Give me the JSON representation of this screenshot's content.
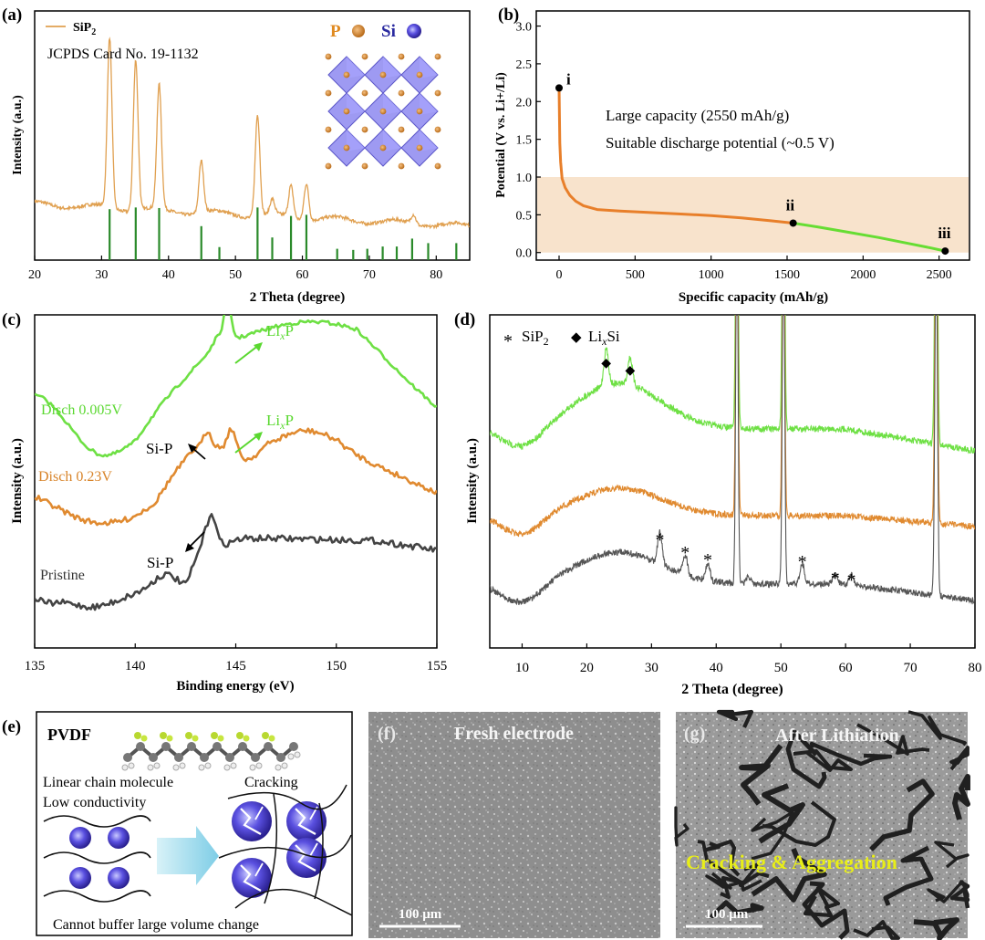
{
  "panels": {
    "a": {
      "tag": "(a)",
      "legend": "SiP",
      "legend_sub": "2",
      "card": "JCPDS Card No. 19-1132",
      "p_label": "P",
      "si_label": "Si"
    },
    "b": {
      "tag": "(b)",
      "text1": "Large capacity (2550 mAh/g)",
      "text2": "Suitable discharge potential (~0.5 V)",
      "pt_i": "i",
      "pt_ii": "ii",
      "pt_iii": "iii"
    },
    "c": {
      "tag": "(c)",
      "s_top": "Disch 0.005V",
      "s_mid": "Disch 0.23V",
      "s_bot": "Pristine",
      "lixp": "Li",
      "lixp_x": "x",
      "lixp_p": "P",
      "sip": "Si-P"
    },
    "d": {
      "tag": "(d)",
      "leg1": "SiP",
      "leg1_sub": "2",
      "leg2": "Li",
      "leg2_x": "x",
      "leg2_si": "Si"
    },
    "e": {
      "tag": "(e)",
      "title": "PVDF",
      "line1": "Linear chain molecule",
      "line2": "Low conductivity",
      "cracking": "Cracking",
      "bottom": "Cannot buffer large volume change"
    },
    "f": {
      "tag": "(f)",
      "title": "Fresh electrode",
      "scale": "100 μm"
    },
    "g": {
      "tag": "(g)",
      "title": "After Lithiation",
      "caption": "Cracking & Aggregation",
      "scale": "100 μm"
    }
  },
  "chart_data": [
    {
      "panel": "a",
      "type": "line",
      "xlabel": "2 Theta (degree)",
      "ylabel": "Intensity (a.u.)",
      "xlim": [
        20,
        85
      ],
      "xticks": [
        20,
        30,
        40,
        50,
        60,
        70,
        80
      ],
      "series": [
        {
          "name": "SiP2",
          "color": "#e0a050",
          "peaks": [
            31.2,
            35.1,
            38.6,
            44.9,
            53.3,
            55.5,
            58.3,
            60.6,
            76.6
          ],
          "peak_heights": [
            0.92,
            0.82,
            0.67,
            0.28,
            0.55,
            0.08,
            0.17,
            0.2,
            0.05
          ]
        }
      ],
      "reference_lines": {
        "color": "#2a8a2a",
        "x": [
          31.2,
          35.1,
          38.6,
          44.9,
          47.6,
          53.3,
          55.5,
          58.3,
          60.6,
          65.2,
          67.6,
          69.7,
          72.0,
          74.1,
          76.4,
          78.8,
          83.0
        ],
        "heights": [
          0.9,
          0.93,
          0.92,
          0.6,
          0.23,
          0.93,
          0.4,
          0.78,
          0.8,
          0.2,
          0.18,
          0.2,
          0.24,
          0.24,
          0.38,
          0.3,
          0.3
        ]
      }
    },
    {
      "panel": "b",
      "type": "line",
      "xlabel": "Specific capacity (mAh/g)",
      "ylabel": "Potential (V vs. Li+/Li)",
      "xlim": [
        -150,
        2700
      ],
      "ylim": [
        -0.1,
        3.2
      ],
      "xticks": [
        0,
        500,
        1000,
        1500,
        2000,
        2500
      ],
      "yticks": [
        0.0,
        0.5,
        1.0,
        1.5,
        2.0,
        2.5,
        3.0
      ],
      "band": [
        0,
        1.0
      ],
      "series": [
        {
          "name": "",
          "color": "#e87f2a",
          "x": [
            0,
            5,
            10,
            20,
            40,
            70,
            110,
            160,
            250,
            400,
            600,
            800,
            1000,
            1200,
            1400,
            1540
          ],
          "y": [
            2.18,
            1.45,
            1.2,
            0.98,
            0.86,
            0.76,
            0.68,
            0.62,
            0.57,
            0.55,
            0.53,
            0.51,
            0.49,
            0.46,
            0.42,
            0.39
          ]
        },
        {
          "name": "",
          "color": "#66dd33",
          "x": [
            1540,
            1700,
            1900,
            2100,
            2300,
            2450,
            2540
          ],
          "y": [
            0.39,
            0.34,
            0.27,
            0.2,
            0.12,
            0.06,
            0.02
          ]
        }
      ],
      "markers": [
        {
          "label": "i",
          "x": 0,
          "y": 2.18
        },
        {
          "label": "ii",
          "x": 1540,
          "y": 0.39
        },
        {
          "label": "iii",
          "x": 2540,
          "y": 0.02
        }
      ]
    },
    {
      "panel": "c",
      "type": "line",
      "xlabel": "Binding energy (eV)",
      "ylabel": "Intensity (a.u.)",
      "xlim": [
        135,
        155
      ],
      "xticks": [
        135,
        140,
        145,
        150,
        155
      ],
      "series": [
        {
          "name": "Disch 0.005V",
          "color": "#6ee044"
        },
        {
          "name": "Disch 0.23V",
          "color": "#e08a30"
        },
        {
          "name": "Pristine",
          "color": "#444444"
        }
      ]
    },
    {
      "panel": "d",
      "type": "line",
      "xlabel": "2 Theta (degree)",
      "ylabel": "Intensity (a.u.)",
      "xlim": [
        5,
        80
      ],
      "xticks": [
        10,
        20,
        30,
        40,
        50,
        60,
        70,
        80
      ],
      "series": [
        {
          "name": "",
          "color": "#6ee044"
        },
        {
          "name": "",
          "color": "#e08a30"
        },
        {
          "name": "",
          "color": "#555555"
        }
      ],
      "markers_star": [
        31.3,
        35.2,
        38.7,
        53.3,
        58.4,
        60.9
      ],
      "markers_diamond": [
        23.0,
        26.7
      ]
    }
  ]
}
